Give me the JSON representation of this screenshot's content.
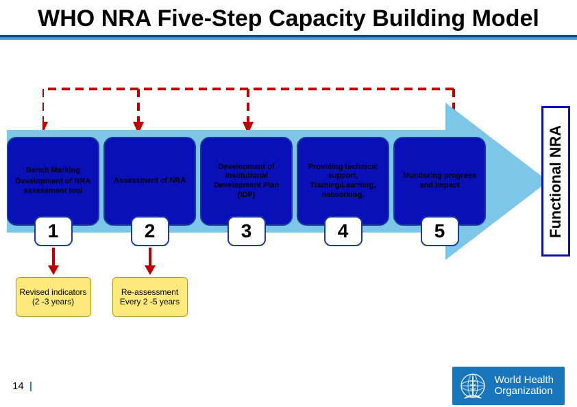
{
  "title": "WHO NRA Five-Step Capacity Building Model",
  "title_fontsize": 34,
  "title_color": "#000000",
  "rule_top_color": "#104a7a",
  "rule_mid_color": "#2f86b5",
  "arrow_color": "#7cc6e8",
  "step_bg": "#0a10b8",
  "step_text_color": "#000000",
  "num_bg": "#ffffff",
  "num_text_color": "#000000",
  "dash_color": "#c00000",
  "bottom_bg": "#ffe97a",
  "func_border": "#0a10b8",
  "func_bg": "#ffffff",
  "func_label": "Functional NRA",
  "steps": [
    {
      "heading": "Bench Marking",
      "body": "Development of NRA assessment tool",
      "num": "1"
    },
    {
      "heading": "",
      "body": "Assessment of NRA",
      "num": "2"
    },
    {
      "heading": "",
      "body": "Development of Institutional Development Plan (IDP)",
      "num": "3"
    },
    {
      "heading": "",
      "body": "Providing technical support, Training/Learning, networking,",
      "num": "4"
    },
    {
      "heading": "",
      "body": "Monitoring progress and impact",
      "num": "5"
    }
  ],
  "bottoms": [
    "Revised indicators (2 -3 years)",
    "Re-assessment Every 2 -5 years"
  ],
  "footer": {
    "page": "14",
    "logo_bg": "#1976bd",
    "logo_line1": "World Health",
    "logo_line2": "Organization"
  }
}
